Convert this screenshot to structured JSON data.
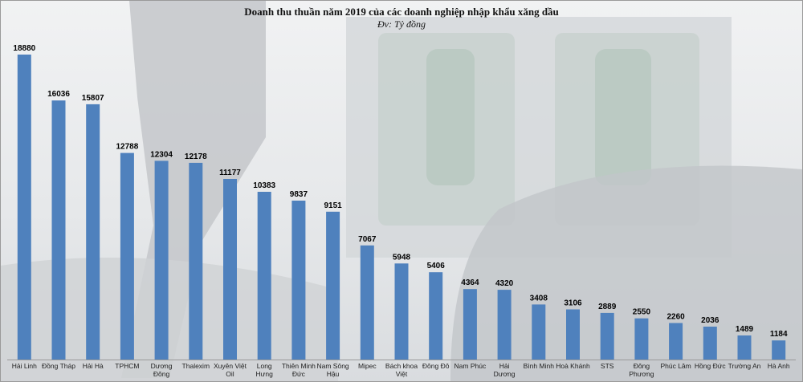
{
  "chart_data": {
    "type": "bar",
    "title": "Doanh thu thuần năm 2019 của các doanh nghiệp nhập khẩu xăng dầu",
    "subtitle": "Đv: Tỷ đồng",
    "xlabel": "",
    "ylabel": "",
    "ylim": [
      0,
      20000
    ],
    "grid": false,
    "legend": "none",
    "bar_color": "#4f81bd",
    "categories": [
      "Hải Linh",
      "Đồng Tháp",
      "Hải Hà",
      "TPHCM",
      "Dương Đông",
      "Thalexim",
      "Xuyên Việt Oil",
      "Long Hưng",
      "Thiên Minh Đức",
      "Nam Sông Hậu",
      "Mipec",
      "Bách khoa Việt",
      "Đông Đô",
      "Nam Phúc",
      "Hải Dương",
      "Bình Minh",
      "Hoà Khánh",
      "STS",
      "Đông Phương",
      "Phúc Lâm",
      "Hồng Đức",
      "Trường An",
      "Hà Anh"
    ],
    "category_lines": [
      [
        "Hải Linh"
      ],
      [
        "Đồng Tháp"
      ],
      [
        "Hải Hà"
      ],
      [
        "TPHCM"
      ],
      [
        "Dương",
        "Đông"
      ],
      [
        "Thalexim"
      ],
      [
        "Xuyên Việt",
        "Oil"
      ],
      [
        "Long",
        "Hưng"
      ],
      [
        "Thiên Minh",
        "Đức"
      ],
      [
        "Nam Sông",
        "Hậu"
      ],
      [
        "Mipec"
      ],
      [
        "Bách khoa",
        "Việt"
      ],
      [
        "Đông Đô"
      ],
      [
        "Nam Phúc"
      ],
      [
        "Hải",
        "Dương"
      ],
      [
        "Bình Minh"
      ],
      [
        "Hoà Khánh"
      ],
      [
        "STS"
      ],
      [
        "Đông",
        "Phương"
      ],
      [
        "Phúc Lâm"
      ],
      [
        "Hồng Đức"
      ],
      [
        "Trường An"
      ],
      [
        "Hà Anh"
      ]
    ],
    "values": [
      18880,
      16036,
      15807,
      12788,
      12304,
      12178,
      11177,
      10383,
      9837,
      9151,
      7067,
      5948,
      5406,
      4364,
      4320,
      3408,
      3106,
      2889,
      2550,
      2260,
      2036,
      1489,
      1184
    ]
  }
}
